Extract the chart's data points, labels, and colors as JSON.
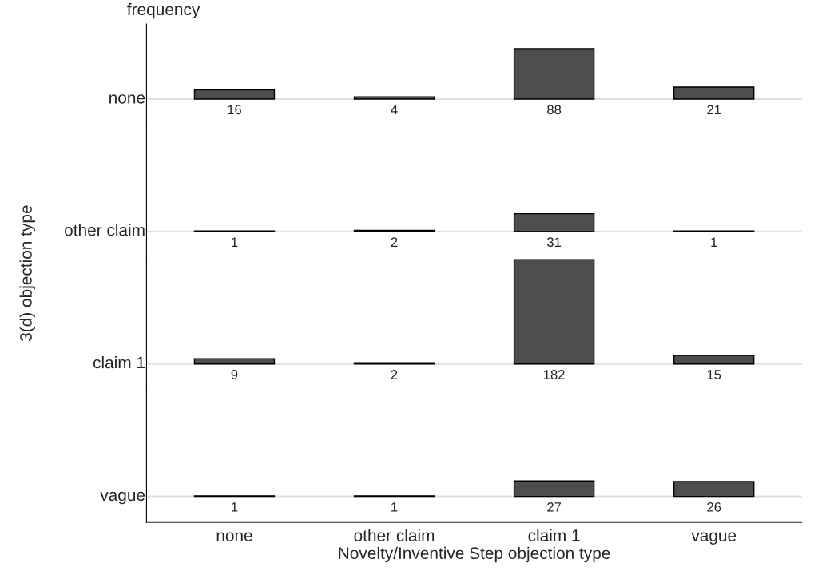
{
  "chart_data": [
    {
      "type": "bar",
      "title": "frequency",
      "annotations": [
        "none"
      ],
      "categories": [
        null,
        null,
        null,
        null
      ],
      "values": [
        16,
        4,
        88,
        21
      ],
      "color": "#4d4d4d",
      "data_labels": true,
      "tick_labels": false
    },
    {
      "type": "bar",
      "annotations": [
        "other claim"
      ],
      "categories": [
        null,
        null,
        null,
        null
      ],
      "values": [
        1,
        2,
        31,
        1
      ],
      "color": "#4d4d4d",
      "data_labels": true,
      "tick_labels": false
    },
    {
      "type": "bar",
      "ylabel": "3(d) objection type",
      "annotations": [
        "claim 1"
      ],
      "categories": [
        null,
        null,
        null,
        null
      ],
      "values": [
        9,
        2,
        182,
        15
      ],
      "color": "#4d4d4d",
      "data_labels": true,
      "tick_labels": false
    },
    {
      "type": "bar",
      "xlabel": "Novelty/Inventive Step objection type",
      "annotations": [
        "vague"
      ],
      "categories": [
        "none",
        "other claim",
        "claim 1",
        "vague"
      ],
      "values": [
        1,
        1,
        27,
        26
      ],
      "color": "#4d4d4d",
      "data_labels": true,
      "tick_labels": "x"
    }
  ]
}
